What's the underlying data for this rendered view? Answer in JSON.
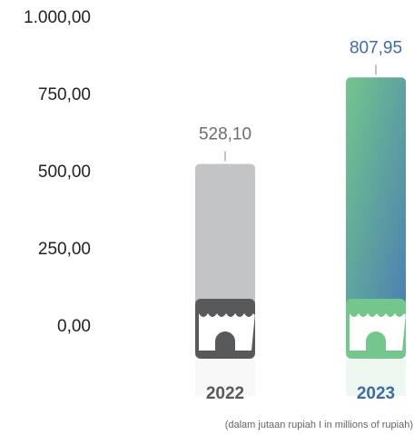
{
  "chart_data": {
    "type": "bar",
    "categories": [
      "2022",
      "2023"
    ],
    "values": [
      528.1,
      807.95
    ],
    "value_labels": [
      "528,10",
      "807,95"
    ],
    "colors": [
      "#c3c4c6",
      [
        "#73c68c",
        "#4a7db3"
      ]
    ],
    "label_colors": [
      "#58595b",
      "#3e6aa8"
    ],
    "ylim": [
      0,
      1000
    ],
    "yticks": [
      {
        "value": 0,
        "label": "0,00"
      },
      {
        "value": 250,
        "label": "250,00"
      },
      {
        "value": 500,
        "label": "500,00"
      },
      {
        "value": 750,
        "label": "750,00"
      },
      {
        "value": 1000,
        "label": "1.000,00"
      }
    ],
    "note": "(dalam jutaan rupiah I in millions of rupiah)"
  }
}
